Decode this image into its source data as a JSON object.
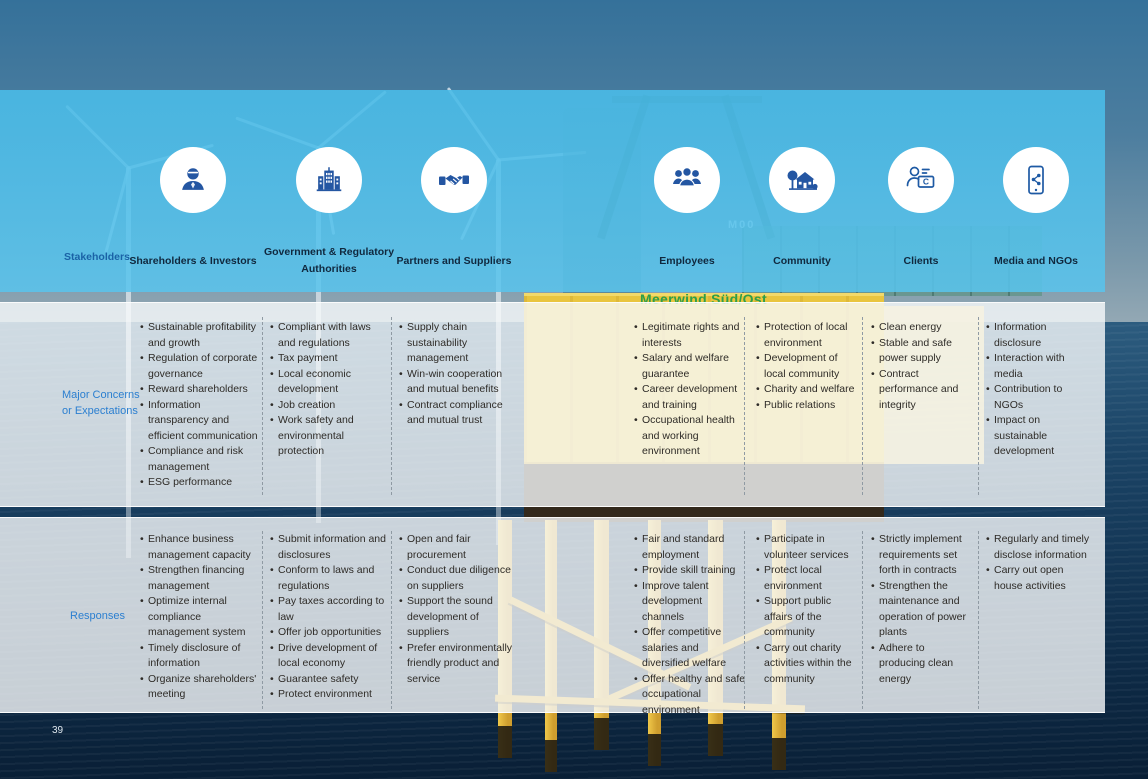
{
  "page": {
    "number": "39"
  },
  "background": {
    "platform_label": "Meerwind Süd/Ost",
    "platform_code": "M00"
  },
  "colors": {
    "band_blue": "#54bfe9",
    "accent_blue": "#2b7fd0",
    "icon_blue": "#2456a2",
    "label_navy": "#10283e",
    "body_text": "#2e2b27",
    "platform_yellow": "#e9c53f",
    "platform_label_green": "#2f9f49"
  },
  "table": {
    "row_labels": {
      "stakeholders": "Stakeholders",
      "concerns_line1": "Major Concerns",
      "concerns_line2": "or Expectations",
      "responses": "Responses"
    },
    "columns": [
      {
        "label": "Shareholders & Investors",
        "icon": "investor-icon",
        "concerns": [
          "Sustainable profitability and growth",
          "Regulation of corporate governance",
          "Reward shareholders",
          "Information transparency and efficient communication",
          "Compliance and risk management",
          "ESG performance"
        ],
        "responses": [
          "Enhance business management capacity",
          "Strengthen financing management",
          "Optimize internal compliance management system",
          "Timely disclosure of information",
          "Organize shareholders' meeting"
        ]
      },
      {
        "label": "Government & Regulatory Authorities",
        "icon": "government-icon",
        "concerns": [
          "Compliant with laws and regulations",
          "Tax payment",
          "Local economic development",
          "Job creation",
          "Work safety and environmental protection"
        ],
        "responses": [
          "Submit information and disclosures",
          "Conform to laws and regulations",
          "Pay taxes according to law",
          "Offer job opportunities",
          "Drive development of local economy",
          "Guarantee safety",
          "Protect environment"
        ]
      },
      {
        "label": "Partners and Suppliers",
        "icon": "handshake-icon",
        "concerns": [
          "Supply chain sustainability management",
          "Win-win cooperation and mutual benefits",
          "Contract compliance and mutual trust"
        ],
        "responses": [
          "Open and fair procurement",
          "Conduct due diligence on suppliers",
          "Support the sound development of suppliers",
          "Prefer environmentally friendly product and service"
        ]
      },
      {
        "label": "Employees",
        "icon": "employees-icon",
        "concerns": [
          "Legitimate rights and interests",
          "Salary and welfare guarantee",
          "Career development and training",
          "Occupational health and working environment"
        ],
        "responses": [
          "Fair and standard employment",
          "Provide skill training",
          "Improve talent development channels",
          "Offer competitive salaries and diversified welfare",
          "Offer healthy and safe occupational environment"
        ]
      },
      {
        "label": "Community",
        "icon": "community-icon",
        "concerns": [
          "Protection of local environment",
          "Development of local community",
          "Charity and welfare",
          "Public relations"
        ],
        "responses": [
          "Participate in volunteer services",
          "Protect local environment",
          "Support public affairs of the community",
          "Carry out charity activities within the community"
        ]
      },
      {
        "label": "Clients",
        "icon": "clients-icon",
        "concerns": [
          "Clean energy",
          "Stable and safe power supply",
          "Contract performance and integrity"
        ],
        "responses": [
          "Strictly implement requirements set forth in contracts",
          "Strengthen the maintenance and operation of power plants",
          "Adhere to producing clean energy"
        ]
      },
      {
        "label": "Media and NGOs",
        "icon": "media-icon",
        "concerns": [
          "Information disclosure",
          "Interaction with media",
          "Contribution to NGOs",
          "Impact on sustainable development"
        ],
        "responses": [
          "Regularly and timely disclose information",
          "Carry out open house activities"
        ]
      }
    ]
  }
}
